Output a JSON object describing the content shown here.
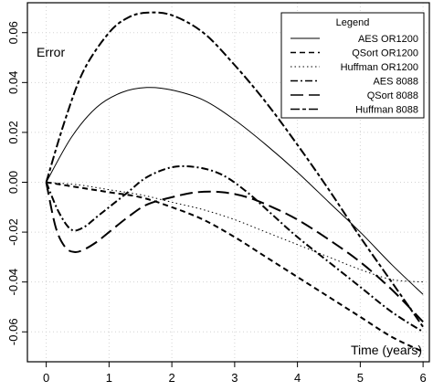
{
  "chart_data": {
    "type": "line",
    "xlabel": "Time (years)",
    "ylabel": "Error",
    "xlim": [
      -0.3,
      6.1
    ],
    "ylim": [
      -0.072,
      0.072
    ],
    "xticks": [
      "0",
      "1",
      "2",
      "3",
      "4",
      "5",
      "6"
    ],
    "yticks": [
      "-0.06",
      "-0.04",
      "-0.02",
      "0.00",
      "0.02",
      "0.04",
      "0.06"
    ],
    "grid": true,
    "legend": {
      "title": "Legend",
      "placement": "top-right"
    },
    "series": [
      {
        "name": "AES OR1200",
        "dash": "solid",
        "x": [
          0,
          0.4,
          0.8,
          1.2,
          1.6,
          2.0,
          2.5,
          3.0,
          3.5,
          4.0,
          4.5,
          5.0,
          5.5,
          6.0
        ],
        "y": [
          0,
          0.018,
          0.03,
          0.036,
          0.038,
          0.037,
          0.033,
          0.025,
          0.015,
          0.004,
          -0.008,
          -0.02,
          -0.033,
          -0.045
        ]
      },
      {
        "name": "QSort OR1200",
        "dash": "dashed",
        "x": [
          0,
          0.5,
          1.0,
          1.5,
          2.0,
          2.5,
          3.0,
          3.5,
          4.0,
          4.5,
          5.0,
          5.5,
          6.0
        ],
        "y": [
          0,
          -0.002,
          -0.004,
          -0.006,
          -0.01,
          -0.015,
          -0.022,
          -0.03,
          -0.038,
          -0.046,
          -0.054,
          -0.062,
          -0.068
        ]
      },
      {
        "name": "Huffman OR1200",
        "dash": "dotted",
        "x": [
          0,
          0.5,
          1.0,
          1.5,
          2.0,
          2.5,
          3.0,
          3.5,
          4.0,
          4.5,
          5.0,
          5.5,
          6.0
        ],
        "y": [
          0,
          -0.001,
          -0.003,
          -0.005,
          -0.008,
          -0.011,
          -0.015,
          -0.02,
          -0.025,
          -0.03,
          -0.035,
          -0.039,
          -0.04
        ]
      },
      {
        "name": "AES 8088",
        "dash": "dashdot",
        "x": [
          0,
          0.2,
          0.4,
          0.6,
          0.8,
          1.0,
          1.3,
          1.6,
          2.0,
          2.4,
          2.8,
          3.2,
          3.6,
          4.0,
          4.5,
          5.0,
          5.5,
          6.0
        ],
        "y": [
          0,
          -0.012,
          -0.019,
          -0.018,
          -0.014,
          -0.01,
          -0.004,
          0.002,
          0.006,
          0.006,
          0.003,
          -0.004,
          -0.013,
          -0.022,
          -0.032,
          -0.042,
          -0.052,
          -0.06
        ]
      },
      {
        "name": "QSort 8088",
        "dash": "longdash",
        "x": [
          0,
          0.15,
          0.3,
          0.45,
          0.6,
          0.8,
          1.0,
          1.3,
          1.6,
          2.0,
          2.4,
          2.8,
          3.2,
          3.6,
          4.0,
          4.5,
          5.0,
          5.5,
          6.0
        ],
        "y": [
          0,
          -0.018,
          -0.026,
          -0.028,
          -0.027,
          -0.024,
          -0.02,
          -0.014,
          -0.009,
          -0.006,
          -0.004,
          -0.004,
          -0.006,
          -0.01,
          -0.015,
          -0.023,
          -0.032,
          -0.043,
          -0.056
        ]
      },
      {
        "name": "Huffman 8088",
        "dash": "twodash",
        "x": [
          0,
          0.3,
          0.6,
          1.0,
          1.3,
          1.6,
          2.0,
          2.5,
          3.0,
          3.5,
          4.0,
          4.5,
          5.0,
          5.5,
          6.0
        ],
        "y": [
          0,
          0.025,
          0.045,
          0.06,
          0.066,
          0.068,
          0.067,
          0.06,
          0.047,
          0.032,
          0.015,
          -0.003,
          -0.022,
          -0.04,
          -0.058
        ]
      }
    ]
  }
}
